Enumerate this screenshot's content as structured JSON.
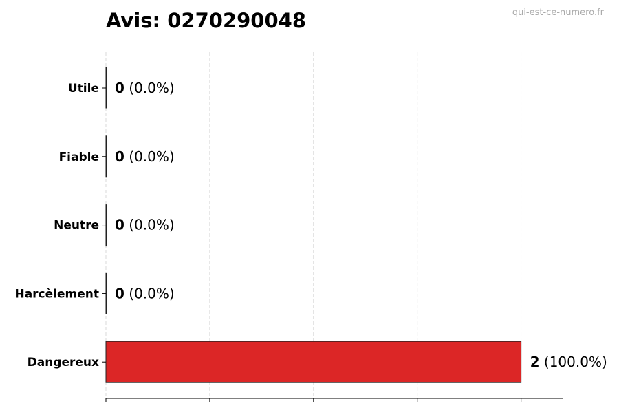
{
  "title": "Avis: 0270290048",
  "watermark": "qui-est-ce-numero.fr",
  "chart_data": {
    "type": "bar",
    "orientation": "horizontal",
    "title": "Avis: 0270290048",
    "categories": [
      "Utile",
      "Fiable",
      "Neutre",
      "Harcèlement",
      "Dangereux"
    ],
    "values": [
      0,
      0,
      0,
      0,
      2
    ],
    "labels": [
      "(0.0%)",
      "(0.0%)",
      "(0.0%)",
      "(0.0%)",
      "(100.0%)"
    ],
    "colors": [
      "#dc2626",
      "#dc2626",
      "#dc2626",
      "#dc2626",
      "#dc2626"
    ],
    "xlabel": "",
    "ylabel": "",
    "xlim": [
      0,
      2.2
    ],
    "xticks": [
      0,
      0.5,
      1,
      1.5,
      2
    ],
    "xtick_labels_shown": false,
    "grid": "x-dashed",
    "legend": "none"
  }
}
